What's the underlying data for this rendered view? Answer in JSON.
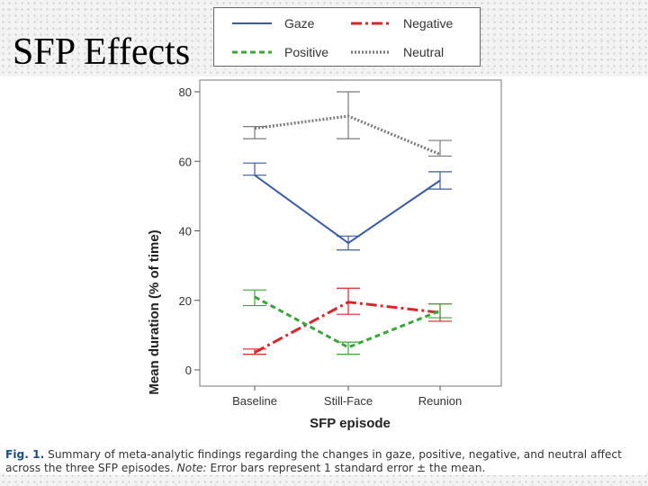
{
  "slide": {
    "title": "SFP Effects"
  },
  "caption": {
    "label": "Fig. 1.",
    "text": "Summary of meta-analytic findings regarding the changes in gaze, positive, negative, and neutral affect across the three SFP episodes.",
    "note_label": "Note:",
    "note_text": "Error bars represent 1 standard error ± the mean."
  },
  "colors": {
    "gaze": "#3b5ba5",
    "negative": "#d9262b",
    "positive": "#3aa63a",
    "neutral": "#7a7a7a"
  },
  "chart_data": {
    "type": "line",
    "title": "",
    "xlabel": "SFP episode",
    "ylabel": "Mean duration (% of time)",
    "categories": [
      "Baseline",
      "Still-Face",
      "Reunion"
    ],
    "ylim": [
      0,
      80
    ],
    "yticks": [
      "0",
      "20",
      "40",
      "60",
      "80"
    ],
    "legend": [
      "Gaze",
      "Negative",
      "Positive",
      "Neutral"
    ],
    "series": [
      {
        "name": "Gaze",
        "values": [
          56,
          36.5,
          54.5
        ],
        "err_upper": [
          59.5,
          38.5,
          57
        ],
        "err_lower": [
          56,
          34.5,
          52
        ],
        "style": "solid",
        "color": "#3b5ba5"
      },
      {
        "name": "Negative",
        "values": [
          5,
          19.5,
          16.5
        ],
        "err_upper": [
          6,
          23.5,
          19
        ],
        "err_lower": [
          4.5,
          16,
          14
        ],
        "style": "dashdot",
        "color": "#d9262b"
      },
      {
        "name": "Positive",
        "values": [
          21,
          6.5,
          17
        ],
        "err_upper": [
          23,
          8,
          19
        ],
        "err_lower": [
          18.5,
          4.5,
          15
        ],
        "style": "dashed",
        "color": "#3aa63a"
      },
      {
        "name": "Neutral",
        "values": [
          69.5,
          73,
          62
        ],
        "err_upper": [
          70,
          80,
          66
        ],
        "err_lower": [
          66.5,
          66.5,
          61.5
        ],
        "style": "dotted",
        "color": "#7a7a7a"
      }
    ]
  }
}
